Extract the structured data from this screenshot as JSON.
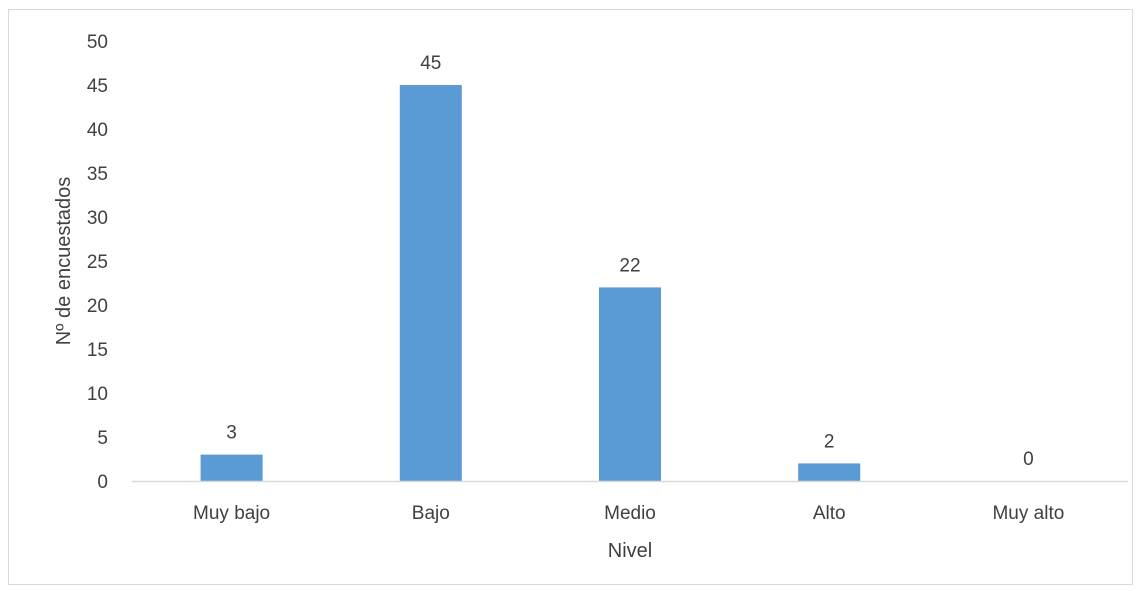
{
  "chart_data": {
    "type": "bar",
    "title": "",
    "xlabel": "Nivel",
    "ylabel": "Nº de encuestados",
    "categories": [
      "Muy bajo",
      "Bajo",
      "Medio",
      "Alto",
      "Muy alto"
    ],
    "values": [
      3,
      45,
      22,
      2,
      0
    ],
    "data_labels": [
      "3",
      "45",
      "22",
      "2",
      "0"
    ],
    "ylim": [
      0,
      50
    ],
    "yticks": [
      0,
      5,
      10,
      15,
      20,
      25,
      30,
      35,
      40,
      45,
      50
    ],
    "grid": false,
    "legend": "none",
    "bar_color": "#5b9bd5",
    "axis_color": "#d9d9d9",
    "text_color": "#404040"
  }
}
